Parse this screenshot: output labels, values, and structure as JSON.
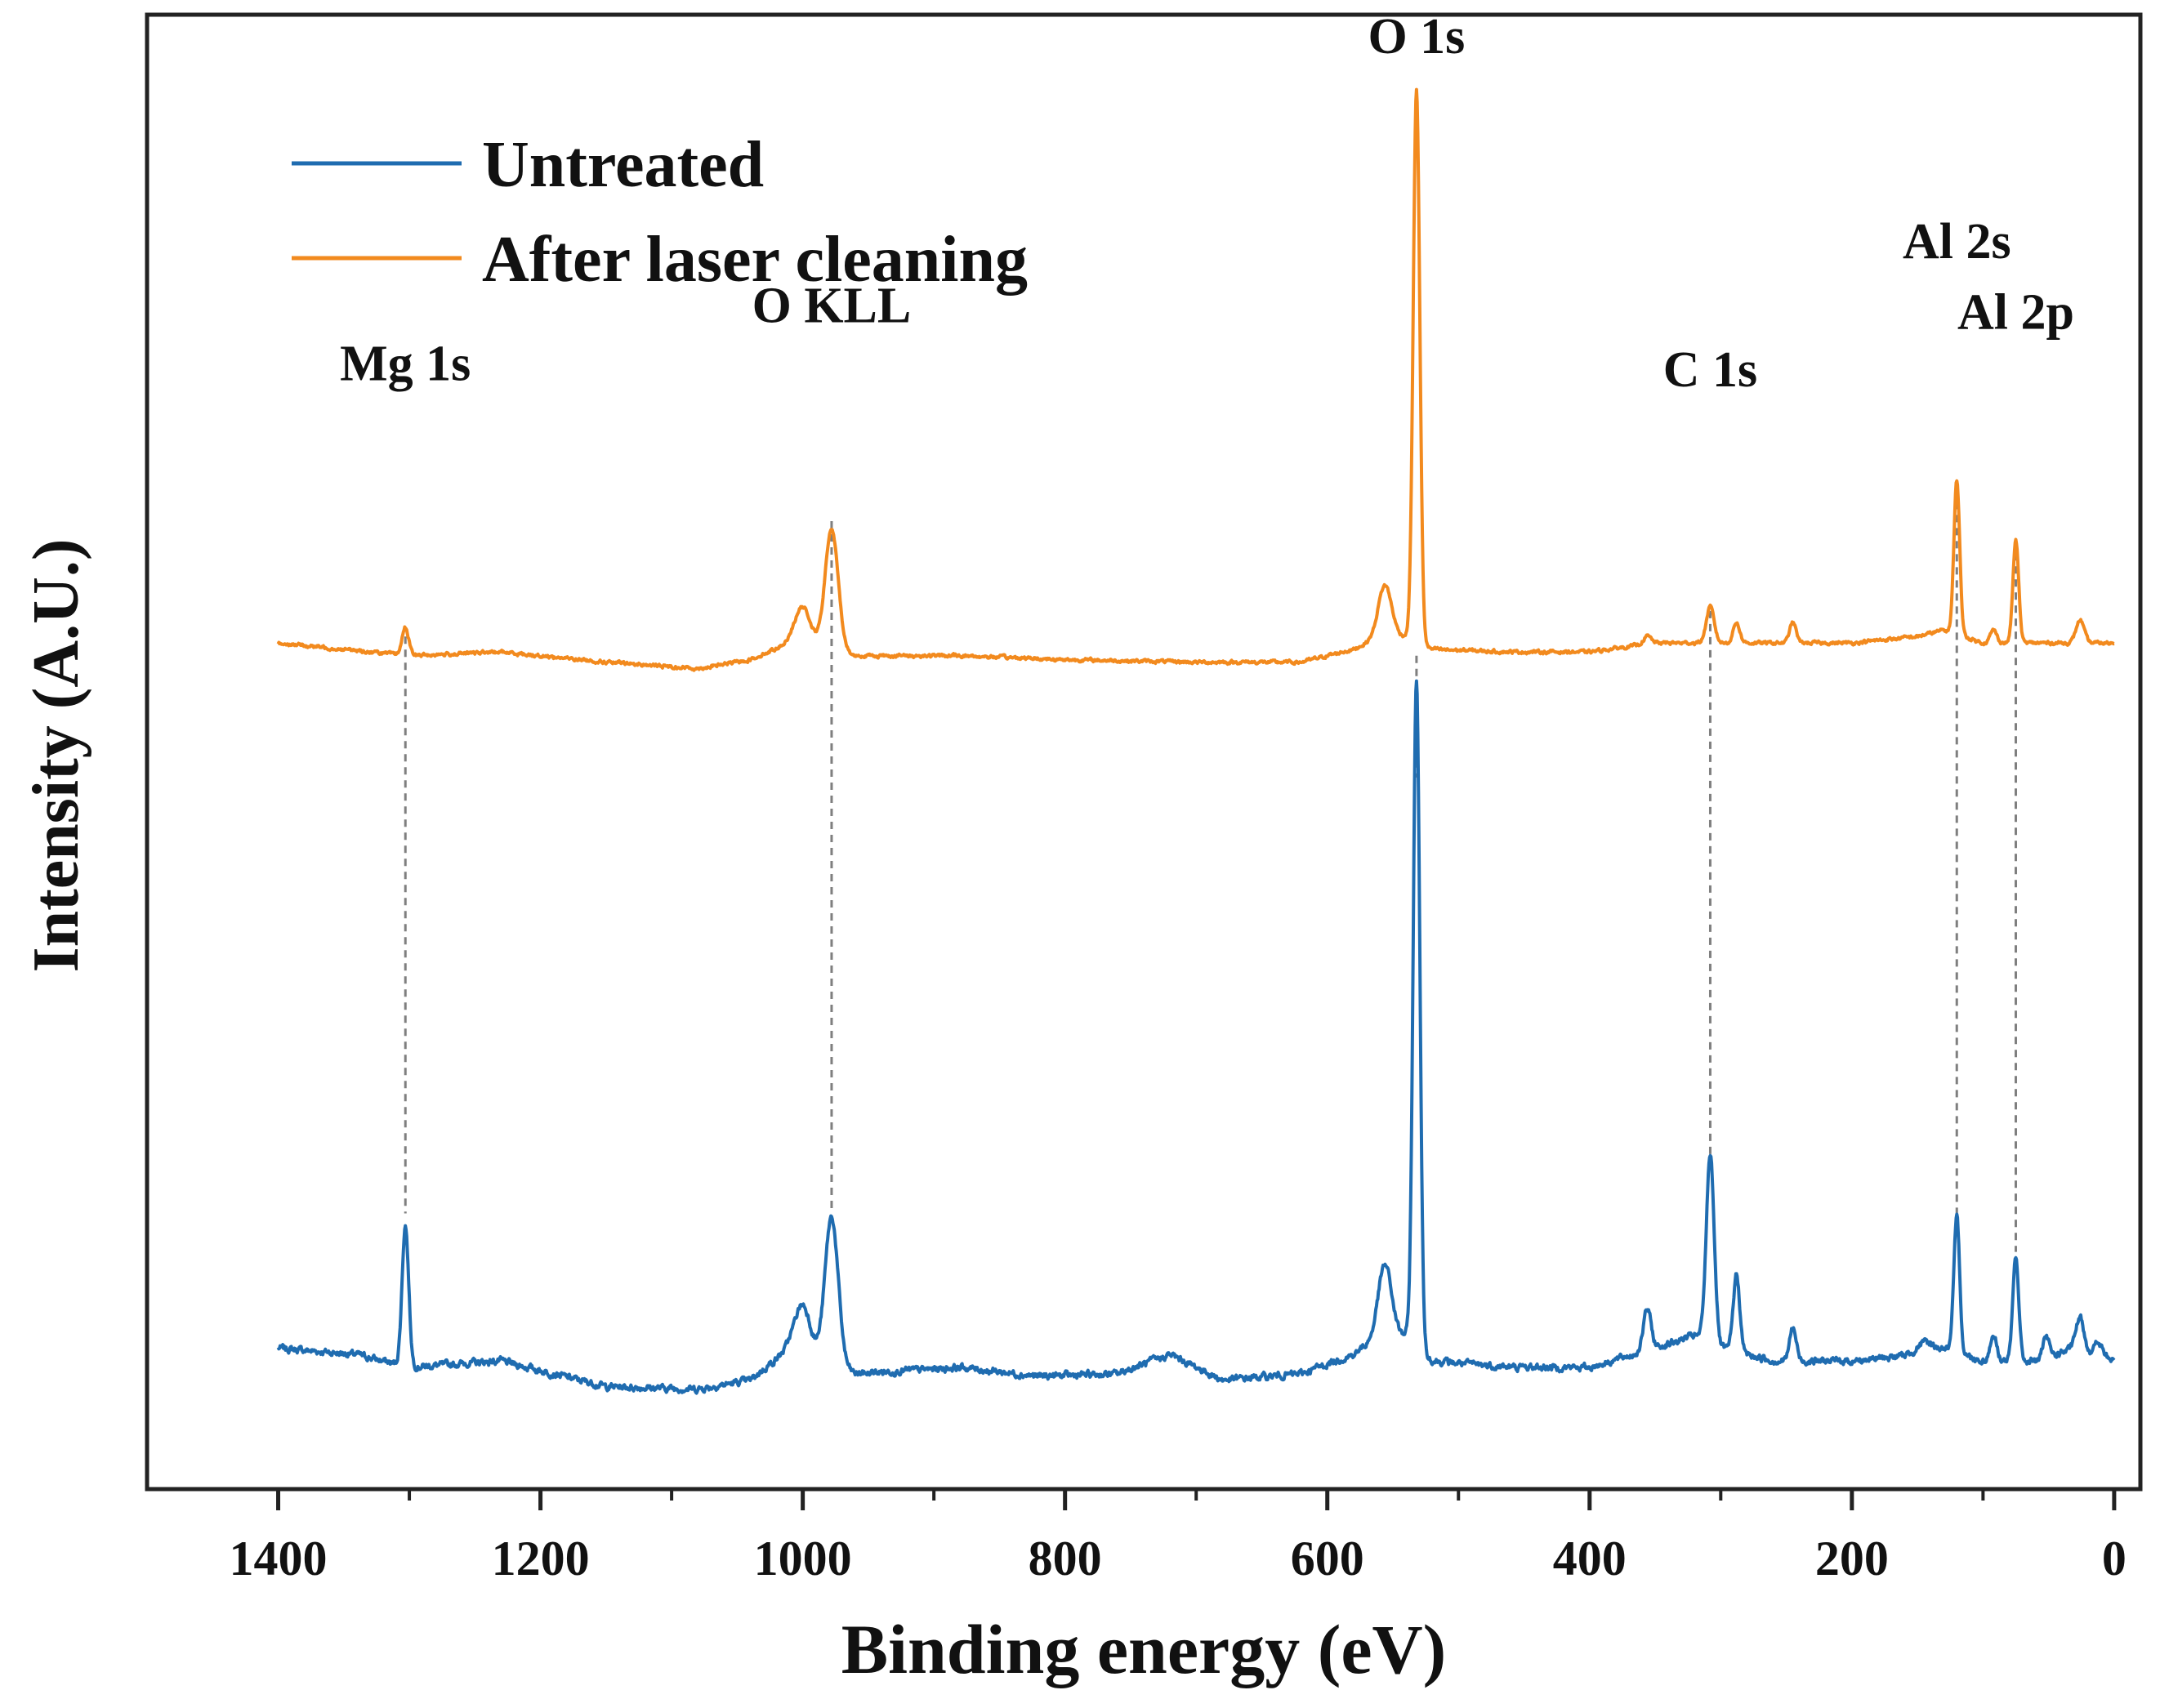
{
  "chart_data": {
    "type": "line",
    "title": "",
    "xlabel": "Binding energy (eV)",
    "ylabel": "Intensity (A.U.)",
    "xlim": [
      1500,
      -20
    ],
    "x_reversed": true,
    "ylim": [
      -1.0,
      10.5
    ],
    "grid": false,
    "legend_position": "top-left",
    "x_ticks": [
      1400,
      1200,
      1000,
      800,
      600,
      400,
      200,
      0
    ],
    "x_minor_ticks": [
      1300,
      1100,
      900,
      700,
      500,
      300,
      100
    ],
    "y_ticks_visible": false,
    "colors": {
      "untreated": "#1f6cb0",
      "laser": "#f28a1e",
      "axis": "#222222",
      "guide": "#7f7f7f"
    },
    "series": [
      {
        "name": "Untreated",
        "baseline_offset": 0,
        "baseline": [
          [
            1400,
            0.1
          ],
          [
            1340,
            0.05
          ],
          [
            1300,
            -0.05
          ],
          [
            1230,
            0.0
          ],
          [
            1150,
            -0.2
          ],
          [
            1080,
            -0.22
          ],
          [
            1040,
            -0.15
          ],
          [
            1010,
            0.1
          ],
          [
            960,
            -0.1
          ],
          [
            880,
            -0.05
          ],
          [
            820,
            -0.12
          ],
          [
            760,
            -0.1
          ],
          [
            720,
            0.05
          ],
          [
            680,
            -0.15
          ],
          [
            620,
            -0.1
          ],
          [
            580,
            0.05
          ],
          [
            560,
            0.2
          ],
          [
            540,
            0.2
          ],
          [
            520,
            0.0
          ],
          [
            460,
            -0.05
          ],
          [
            400,
            -0.05
          ],
          [
            350,
            0.1
          ],
          [
            320,
            0.2
          ],
          [
            300,
            0.1
          ],
          [
            260,
            0.0
          ],
          [
            200,
            0.0
          ],
          [
            150,
            0.05
          ],
          [
            130,
            0.1
          ],
          [
            100,
            0.0
          ],
          [
            60,
            0.0
          ],
          [
            30,
            0.1
          ],
          [
            0,
            0.0
          ]
        ],
        "peaks": [
          {
            "x": 1303,
            "height": 1.1,
            "width": 2.5
          },
          {
            "x": 1000,
            "height": 0.38,
            "width": 6
          },
          {
            "x": 978,
            "height": 1.15,
            "width": 5
          },
          {
            "x": 556,
            "height": 0.55,
            "width": 5
          },
          {
            "x": 532,
            "height": 5.2,
            "width": 2.5
          },
          {
            "x": 356,
            "height": 0.32,
            "width": 3
          },
          {
            "x": 308,
            "height": 1.48,
            "width": 3
          },
          {
            "x": 288,
            "height": 0.6,
            "width": 2.5
          },
          {
            "x": 245,
            "height": 0.26,
            "width": 2.5
          },
          {
            "x": 145,
            "height": 0.08,
            "width": 6
          },
          {
            "x": 120,
            "height": 1.05,
            "width": 2.2
          },
          {
            "x": 92,
            "height": 0.2,
            "width": 2.5
          },
          {
            "x": 75,
            "height": 0.82,
            "width": 2.2
          },
          {
            "x": 52,
            "height": 0.15,
            "width": 2.5
          },
          {
            "x": 26,
            "height": 0.25,
            "width": 3
          },
          {
            "x": 12,
            "height": 0.1,
            "width": 3
          }
        ],
        "noise": 0.05
      },
      {
        "name": "After laser cleaning",
        "baseline_offset": 5.55,
        "baseline": [
          [
            1400,
            0.05
          ],
          [
            1350,
            0.0
          ],
          [
            1300,
            -0.05
          ],
          [
            1230,
            -0.02
          ],
          [
            1150,
            -0.1
          ],
          [
            1080,
            -0.15
          ],
          [
            1040,
            -0.08
          ],
          [
            1010,
            0.05
          ],
          [
            960,
            -0.05
          ],
          [
            880,
            -0.05
          ],
          [
            800,
            -0.08
          ],
          [
            700,
            -0.1
          ],
          [
            620,
            -0.1
          ],
          [
            580,
            0.0
          ],
          [
            560,
            0.1
          ],
          [
            540,
            0.1
          ],
          [
            520,
            0.0
          ],
          [
            460,
            -0.02
          ],
          [
            400,
            -0.02
          ],
          [
            350,
            0.05
          ],
          [
            300,
            0.05
          ],
          [
            260,
            0.05
          ],
          [
            200,
            0.05
          ],
          [
            150,
            0.1
          ],
          [
            130,
            0.15
          ],
          [
            100,
            0.05
          ],
          [
            60,
            0.05
          ],
          [
            30,
            0.05
          ],
          [
            0,
            0.05
          ]
        ],
        "peaks": [
          {
            "x": 1303,
            "height": 0.22,
            "width": 2.5
          },
          {
            "x": 1000,
            "height": 0.3,
            "width": 6
          },
          {
            "x": 978,
            "height": 0.95,
            "width": 5
          },
          {
            "x": 556,
            "height": 0.4,
            "width": 5
          },
          {
            "x": 532,
            "height": 4.3,
            "width": 2.5
          },
          {
            "x": 356,
            "height": 0.06,
            "width": 3
          },
          {
            "x": 308,
            "height": 0.28,
            "width": 3
          },
          {
            "x": 288,
            "height": 0.16,
            "width": 2.5
          },
          {
            "x": 245,
            "height": 0.16,
            "width": 2.5
          },
          {
            "x": 120,
            "height": 1.2,
            "width": 2.2
          },
          {
            "x": 92,
            "height": 0.1,
            "width": 2.5
          },
          {
            "x": 75,
            "height": 0.8,
            "width": 2.2
          },
          {
            "x": 26,
            "height": 0.18,
            "width": 3
          }
        ],
        "noise": 0.025
      }
    ],
    "peak_annotations": [
      {
        "label": "Mg 1s",
        "x": 1303,
        "label_y": 7.65,
        "guide_from": 5.65,
        "guide_to": 1.15
      },
      {
        "label": "O KLL",
        "x": 978,
        "label_y": 8.1,
        "guide_from": 6.55,
        "guide_to": 1.15
      },
      {
        "label": "O 1s",
        "x": 532,
        "label_y": 10.2,
        "guide_from": 5.5,
        "guide_to": 4.55
      },
      {
        "label": "C 1s",
        "x": 308,
        "label_y": 7.6,
        "guide_from": 5.85,
        "guide_to": 1.55
      },
      {
        "label": "Al 2s",
        "x": 120,
        "label_y": 8.6,
        "guide_from": 6.7,
        "guide_to": 1.1
      },
      {
        "label": "Al 2p",
        "x": 75,
        "label_y": 8.05,
        "guide_from": 6.3,
        "guide_to": 0.85
      }
    ],
    "legend": [
      {
        "label": "Untreated",
        "series": 0
      },
      {
        "label": "After laser cleaning",
        "series": 1
      }
    ]
  }
}
